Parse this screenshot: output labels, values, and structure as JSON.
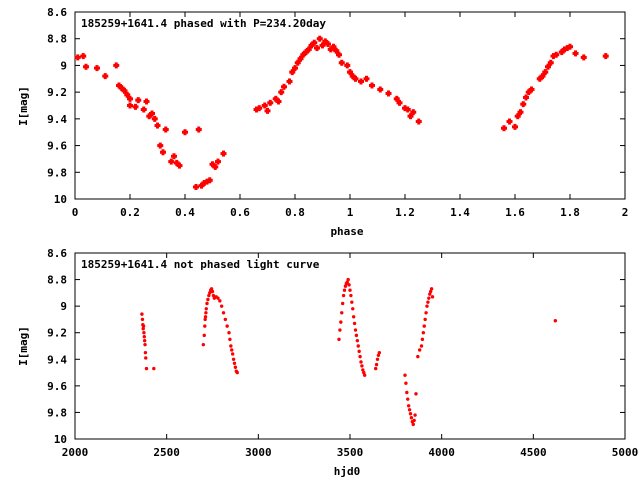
{
  "chart_data": [
    {
      "type": "scatter",
      "title": "185259+1641.4 phased with P=234.20day",
      "xlabel": "phase",
      "ylabel": "I[mag]",
      "xlim": [
        0,
        2
      ],
      "ylim": [
        8.6,
        10
      ],
      "y_inverted": true,
      "x_ticks": [
        "0",
        "0.2",
        "0.4",
        "0.6",
        "0.8",
        "1",
        "1.2",
        "1.4",
        "1.6",
        "1.8",
        "2"
      ],
      "y_ticks": [
        "8.6",
        "8.8",
        "9",
        "9.2",
        "9.4",
        "9.6",
        "9.8",
        "10"
      ],
      "marker": "plus",
      "color": "#ff0000",
      "x": [
        0.01,
        0.03,
        0.04,
        0.08,
        0.11,
        0.15,
        0.16,
        0.17,
        0.18,
        0.19,
        0.2,
        0.2,
        0.22,
        0.23,
        0.25,
        0.26,
        0.27,
        0.28,
        0.29,
        0.3,
        0.31,
        0.32,
        0.33,
        0.35,
        0.36,
        0.37,
        0.38,
        0.4,
        0.44,
        0.45,
        0.46,
        0.47,
        0.48,
        0.49,
        0.5,
        0.51,
        0.52,
        0.54,
        0.66,
        0.67,
        0.69,
        0.7,
        0.71,
        0.73,
        0.74,
        0.75,
        0.76,
        0.78,
        0.79,
        0.8,
        0.81,
        0.82,
        0.83,
        0.84,
        0.85,
        0.86,
        0.87,
        0.88,
        0.89,
        0.9,
        0.91,
        0.92,
        0.93,
        0.94,
        0.95,
        0.96,
        0.97,
        0.99,
        1.0,
        1.01,
        1.02,
        1.04,
        1.06,
        1.08,
        1.11,
        1.14,
        1.17,
        1.18,
        1.2,
        1.21,
        1.22,
        1.23,
        1.25,
        1.56,
        1.58,
        1.6,
        1.61,
        1.62,
        1.63,
        1.64,
        1.65,
        1.66,
        1.69,
        1.7,
        1.71,
        1.72,
        1.73,
        1.74,
        1.75,
        1.77,
        1.78,
        1.79,
        1.8,
        1.82,
        1.85,
        1.93
      ],
      "y": [
        8.94,
        8.93,
        9.01,
        9.02,
        9.08,
        9.0,
        9.15,
        9.17,
        9.19,
        9.22,
        9.25,
        9.3,
        9.31,
        9.26,
        9.33,
        9.27,
        9.38,
        9.36,
        9.4,
        9.45,
        9.6,
        9.65,
        9.48,
        9.72,
        9.68,
        9.73,
        9.75,
        9.5,
        9.91,
        9.48,
        9.9,
        9.88,
        9.87,
        9.86,
        9.74,
        9.76,
        9.72,
        9.66,
        9.33,
        9.32,
        9.3,
        9.34,
        9.28,
        9.25,
        9.27,
        9.2,
        9.16,
        9.12,
        9.05,
        9.02,
        8.98,
        8.95,
        8.92,
        8.9,
        8.88,
        8.85,
        8.83,
        8.87,
        8.8,
        8.85,
        8.82,
        8.84,
        8.88,
        8.86,
        8.89,
        8.92,
        8.98,
        9.0,
        9.05,
        9.08,
        9.1,
        9.12,
        9.1,
        9.15,
        9.18,
        9.21,
        9.25,
        9.28,
        9.32,
        9.33,
        9.38,
        9.35,
        9.42,
        9.47,
        9.42,
        9.46,
        9.38,
        9.35,
        9.29,
        9.24,
        9.2,
        9.18,
        9.1,
        9.08,
        9.05,
        9.01,
        8.98,
        8.93,
        8.92,
        8.9,
        8.88,
        8.87,
        8.86,
        8.91,
        8.94,
        8.93
      ]
    },
    {
      "type": "scatter",
      "title": "185259+1641.4 not phased light curve",
      "xlabel": "hjd0",
      "ylabel": "I[mag]",
      "xlim": [
        2000,
        5000
      ],
      "ylim": [
        8.6,
        10
      ],
      "y_inverted": true,
      "x_ticks": [
        "2000",
        "2500",
        "3000",
        "3500",
        "4000",
        "4500",
        "5000"
      ],
      "y_ticks": [
        "8.6",
        "8.8",
        "9",
        "9.2",
        "9.4",
        "9.6",
        "9.8",
        "10"
      ],
      "marker": "dot",
      "color": "#ff0000",
      "x": [
        2365,
        2368,
        2370,
        2372,
        2374,
        2376,
        2378,
        2380,
        2382,
        2384,
        2386,
        2390,
        2430,
        2700,
        2705,
        2708,
        2710,
        2712,
        2714,
        2716,
        2720,
        2725,
        2730,
        2735,
        2740,
        2745,
        2750,
        2755,
        2760,
        2770,
        2780,
        2790,
        2800,
        2810,
        2820,
        2830,
        2840,
        2845,
        2850,
        2855,
        2860,
        2865,
        2870,
        2875,
        2880,
        2885,
        3440,
        3445,
        3450,
        3455,
        3460,
        3465,
        3470,
        3475,
        3480,
        3485,
        3490,
        3495,
        3500,
        3505,
        3510,
        3515,
        3520,
        3525,
        3530,
        3535,
        3540,
        3545,
        3550,
        3555,
        3560,
        3565,
        3570,
        3575,
        3580,
        3640,
        3645,
        3650,
        3655,
        3660,
        3800,
        3805,
        3810,
        3815,
        3820,
        3825,
        3830,
        3835,
        3840,
        3845,
        3850,
        3855,
        3860,
        3870,
        3880,
        3890,
        3895,
        3900,
        3905,
        3910,
        3915,
        3920,
        3925,
        3930,
        3935,
        3940,
        3945,
        3950,
        4620
      ],
      "y": [
        9.06,
        9.1,
        9.14,
        9.17,
        9.15,
        9.2,
        9.23,
        9.26,
        9.29,
        9.35,
        9.39,
        9.47,
        9.47,
        9.29,
        9.22,
        9.15,
        9.1,
        9.08,
        9.05,
        9.02,
        8.98,
        8.95,
        8.92,
        8.9,
        8.88,
        8.87,
        8.89,
        8.92,
        8.94,
        8.93,
        8.94,
        8.96,
        9.0,
        9.05,
        9.1,
        9.15,
        9.2,
        9.25,
        9.3,
        9.33,
        9.36,
        9.4,
        9.43,
        9.46,
        9.49,
        9.5,
        9.25,
        9.18,
        9.12,
        9.05,
        8.98,
        8.92,
        8.88,
        8.85,
        8.83,
        8.82,
        8.8,
        8.84,
        8.88,
        8.92,
        8.97,
        9.02,
        9.08,
        9.13,
        9.18,
        9.22,
        9.26,
        9.3,
        9.34,
        9.38,
        9.42,
        9.45,
        9.48,
        9.5,
        9.52,
        9.47,
        9.44,
        9.4,
        9.37,
        9.35,
        9.52,
        9.58,
        9.65,
        9.7,
        9.75,
        9.78,
        9.81,
        9.84,
        9.87,
        9.89,
        9.86,
        9.82,
        9.66,
        9.38,
        9.33,
        9.3,
        9.25,
        9.2,
        9.15,
        9.1,
        9.05,
        9.0,
        8.97,
        8.94,
        8.91,
        8.89,
        8.87,
        8.93,
        9.11
      ]
    }
  ]
}
